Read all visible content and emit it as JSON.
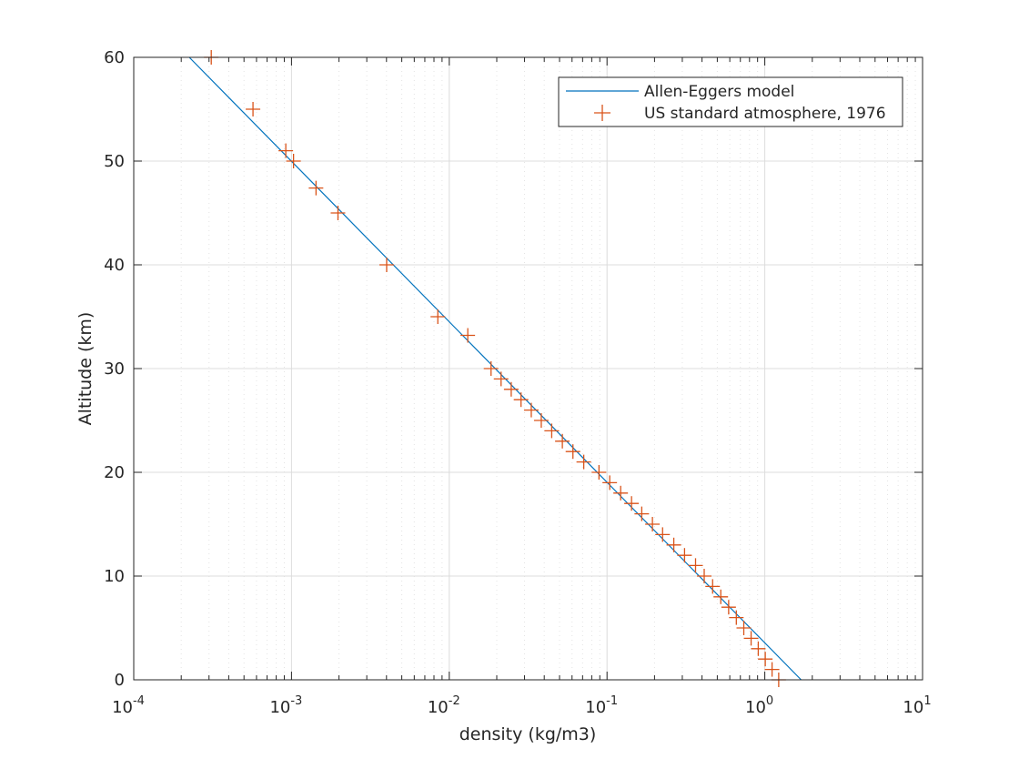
{
  "chart_data": {
    "type": "scatter",
    "title": "",
    "xlabel": "density (kg/m3)",
    "ylabel": "Altitude (km)",
    "xscale": "log",
    "xlim": [
      0.0001,
      10
    ],
    "ylim": [
      0,
      60
    ],
    "grid": true,
    "minor_grid": true,
    "legend": "top-right",
    "x_ticks": [
      {
        "value": 0.0001,
        "base": "10",
        "exp": "-4"
      },
      {
        "value": 0.001,
        "base": "10",
        "exp": "-3"
      },
      {
        "value": 0.01,
        "base": "10",
        "exp": "-2"
      },
      {
        "value": 0.1,
        "base": "10",
        "exp": "-1"
      },
      {
        "value": 1,
        "base": "10",
        "exp": "0"
      },
      {
        "value": 10,
        "base": "10",
        "exp": "1"
      }
    ],
    "y_ticks": [
      0,
      10,
      20,
      30,
      40,
      50,
      60
    ],
    "series": [
      {
        "name": "Allen-Eggers model",
        "kind": "line",
        "color": "#0072BD",
        "x": [
          0.000225,
          1.7
        ],
        "y": [
          60,
          0
        ]
      },
      {
        "name": "US standard atmosphere, 1976",
        "kind": "marker",
        "marker": "+",
        "color": "#D95319",
        "x": [
          0.00031,
          0.00057,
          0.00092,
          0.00103,
          0.00143,
          0.00197,
          0.00401,
          0.00846,
          0.0131,
          0.0184,
          0.0213,
          0.0247,
          0.0285,
          0.0331,
          0.0383,
          0.0446,
          0.0521,
          0.0608,
          0.0712,
          0.0889,
          0.104,
          0.122,
          0.143,
          0.166,
          0.194,
          0.225,
          0.265,
          0.31,
          0.364,
          0.413,
          0.467,
          0.526,
          0.59,
          0.66,
          0.736,
          0.819,
          0.909,
          1.007,
          1.112,
          1.225
        ],
        "y": [
          60,
          55,
          51,
          50,
          47.4,
          45,
          40,
          35,
          33.2,
          30,
          29,
          28,
          27,
          26,
          25,
          24,
          23,
          22,
          21,
          20,
          19,
          18,
          17,
          16,
          15,
          14,
          13,
          12,
          11.02,
          10,
          9,
          8,
          7,
          6,
          5,
          4,
          3,
          2,
          1,
          0
        ]
      }
    ]
  },
  "colors": {
    "axis": "#262626",
    "grid_major": "#dcdcdc",
    "grid_minor": "#e4e4e4",
    "line": "#0072BD",
    "markers": "#D95319"
  }
}
